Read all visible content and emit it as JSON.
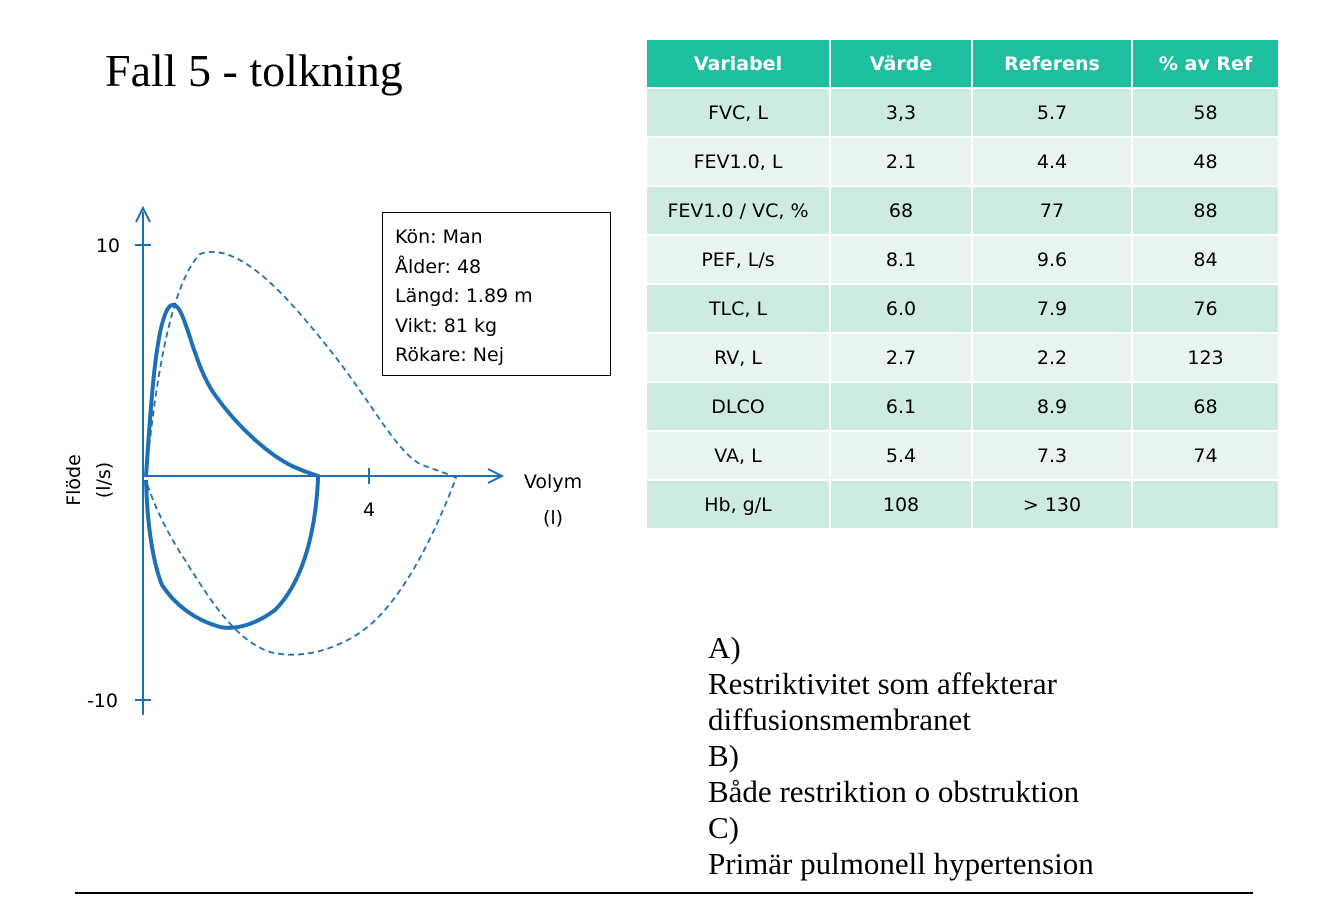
{
  "title": "Fall 5 - tolkning",
  "diagram": {
    "y_axis_label": [
      "Flöde",
      "(l/s)"
    ],
    "x_axis_label": [
      "Volym",
      "(l)"
    ],
    "y_tick_top": "10",
    "y_tick_bottom": "-10",
    "x_tick": "4",
    "info": [
      "Kön: Man",
      "Ålder: 48",
      "Längd: 1.89 m",
      "Vikt: 81 kg",
      "Rökare: Nej"
    ]
  },
  "table": {
    "header": [
      "Variabel",
      "Värde",
      "Referens",
      "% av Ref"
    ],
    "rows": [
      [
        "FVC, L",
        "3,3",
        "5.7",
        "58"
      ],
      [
        "FEV1.0, L",
        "2.1",
        "4.4",
        "48"
      ],
      [
        "FEV1.0 / VC, %",
        "68",
        "77",
        "88"
      ],
      [
        "PEF, L/s",
        "8.1",
        "9.6",
        "84"
      ],
      [
        "TLC, L",
        "6.0",
        "7.9",
        "76"
      ],
      [
        "RV, L",
        "2.7",
        "2.2",
        "123"
      ],
      [
        "DLCO",
        "6.1",
        "8.9",
        "68"
      ],
      [
        "VA, L",
        "5.4",
        "7.3",
        "74"
      ],
      [
        "Hb, g/L",
        "108",
        "> 130",
        null
      ]
    ]
  },
  "options": [
    {
      "label": "A)",
      "text": [
        "Restriktivitet som affekterar",
        "diffusionsmembranet"
      ]
    },
    {
      "label": "B)",
      "text": [
        "Både restriktion o obstruktion"
      ]
    },
    {
      "label": "C)",
      "text": [
        "Primär pulmonell hypertension"
      ]
    }
  ]
}
